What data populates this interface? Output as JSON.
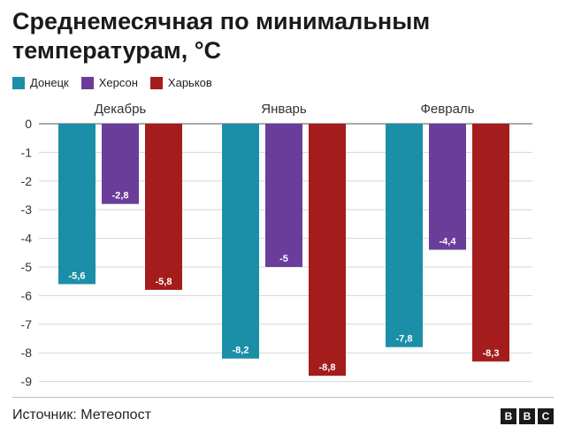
{
  "title": "Среднемесячная по минимальным температурам, °С",
  "source": "Источник: Метеопост",
  "logo": [
    "B",
    "B",
    "C"
  ],
  "chart_data": {
    "type": "bar",
    "title": "Среднемесячная по минимальным температурам, °С",
    "categories": [
      "Декабрь",
      "Январь",
      "Февраль"
    ],
    "series": [
      {
        "name": "Донецк",
        "color": "#1b8fa7",
        "values": [
          -5.6,
          -8.2,
          -7.8
        ],
        "labels": [
          "-5,6",
          "-8,2",
          "-7,8"
        ]
      },
      {
        "name": "Херсон",
        "color": "#6a3d9a",
        "values": [
          -2.8,
          -5,
          -4.4
        ],
        "labels": [
          "-2,8",
          "-5",
          "-4,4"
        ]
      },
      {
        "name": "Харьков",
        "color": "#a51c1c",
        "values": [
          -5.8,
          -8.8,
          -8.3
        ],
        "labels": [
          "-5,8",
          "-8,8",
          "-8,3"
        ]
      }
    ],
    "yticks": [
      0,
      -1,
      -2,
      -3,
      -4,
      -5,
      -6,
      -7,
      -8,
      -9
    ],
    "ylim": [
      -9,
      0
    ],
    "grid": true,
    "legend": "top-left"
  }
}
